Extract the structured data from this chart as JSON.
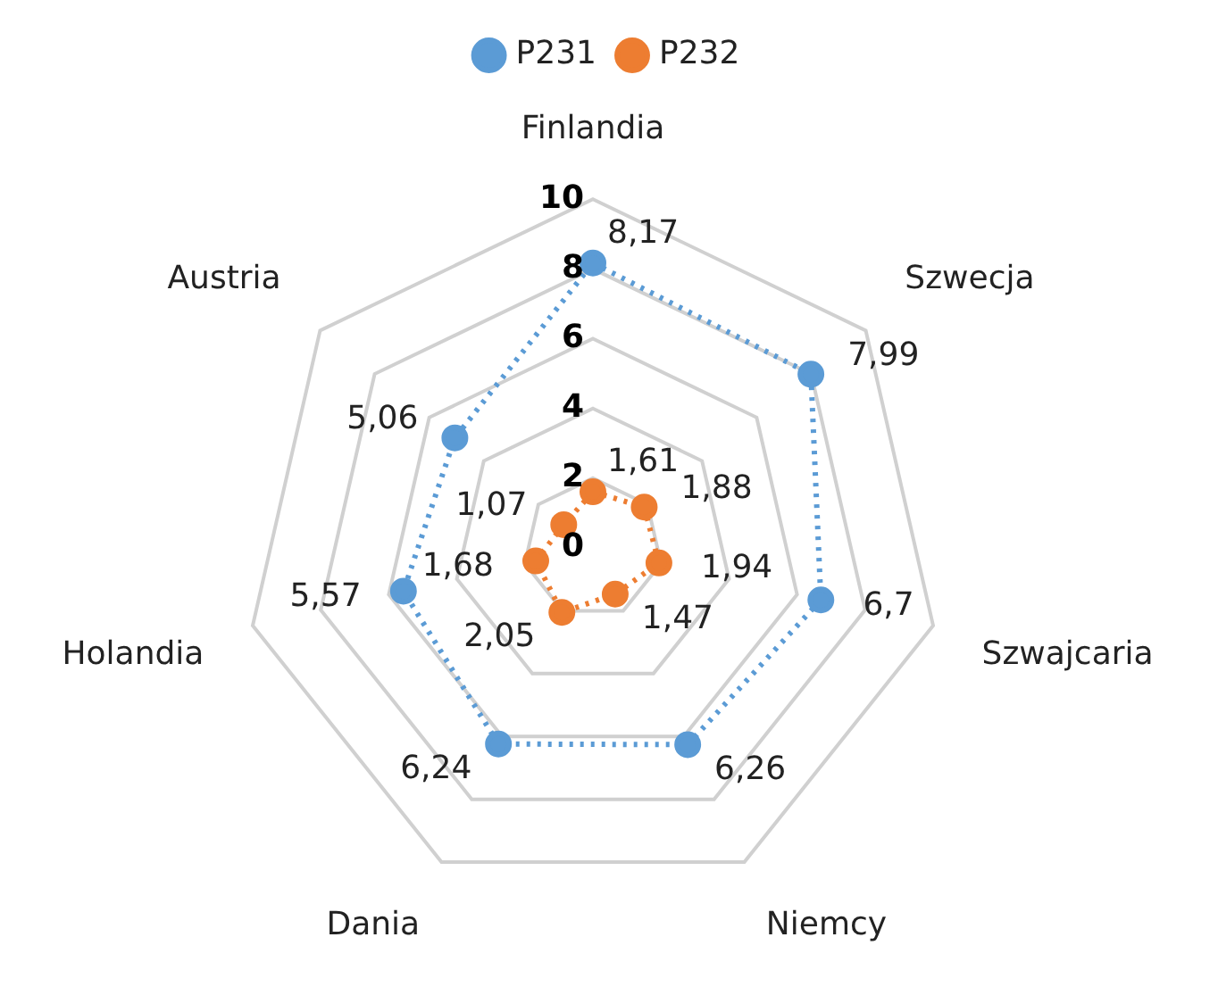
{
  "chart_data": {
    "type": "radar",
    "categories": [
      "Finlandia",
      "Szwecja",
      "Szwajcaria",
      "Niemcy",
      "Dania",
      "Holandia",
      "Austria"
    ],
    "series": [
      {
        "name": "P231",
        "color": "#5b9bd5",
        "values": [
          8.17,
          7.99,
          6.7,
          6.26,
          6.24,
          5.57,
          5.06
        ],
        "value_labels": [
          "8,17",
          "7,99",
          "6,7",
          "6,26",
          "6,24",
          "5,57",
          "5,06"
        ]
      },
      {
        "name": "P232",
        "color": "#ed7d31",
        "values": [
          1.61,
          1.88,
          1.94,
          1.47,
          2.05,
          1.68,
          1.07
        ],
        "value_labels": [
          "1,61",
          "1,88",
          "1,94",
          "1,47",
          "2,05",
          "1,68",
          "1,07"
        ]
      }
    ],
    "ylim": [
      0,
      10
    ],
    "yticks": [
      0,
      2,
      4,
      6,
      8,
      10
    ],
    "grid": true,
    "legend": "top",
    "marker": "circle",
    "line_style": "dotted"
  }
}
